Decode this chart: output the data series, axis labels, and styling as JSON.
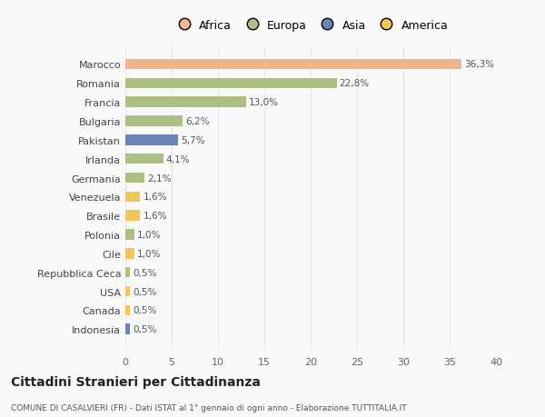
{
  "countries": [
    "Marocco",
    "Romania",
    "Francia",
    "Bulgaria",
    "Pakistan",
    "Irlanda",
    "Germania",
    "Venezuela",
    "Brasile",
    "Polonia",
    "Cile",
    "Repubblica Ceca",
    "USA",
    "Canada",
    "Indonesia"
  ],
  "values": [
    36.3,
    22.8,
    13.0,
    6.2,
    5.7,
    4.1,
    2.1,
    1.6,
    1.6,
    1.0,
    1.0,
    0.5,
    0.5,
    0.5,
    0.5
  ],
  "labels": [
    "36,3%",
    "22,8%",
    "13,0%",
    "6,2%",
    "5,7%",
    "4,1%",
    "2,1%",
    "1,6%",
    "1,6%",
    "1,0%",
    "1,0%",
    "0,5%",
    "0,5%",
    "0,5%",
    "0,5%"
  ],
  "bar_colors": [
    "#F2B48A",
    "#ADBF85",
    "#ADBF85",
    "#ADBF85",
    "#6B85B8",
    "#ADBF85",
    "#ADBF85",
    "#F0C85A",
    "#F0C85A",
    "#ADBF85",
    "#F0C85A",
    "#ADBF85",
    "#F0C85A",
    "#F0C85A",
    "#6B85B8"
  ],
  "xlim": [
    0,
    40
  ],
  "xticks": [
    0,
    5,
    10,
    15,
    20,
    25,
    30,
    35,
    40
  ],
  "title": "Cittadini Stranieri per Cittadinanza",
  "subtitle": "COMUNE DI CASALVIERI (FR) - Dati ISTAT al 1° gennaio di ogni anno - Elaborazione TUTTITALIA.IT",
  "background_color": "#f9f9f9",
  "grid_color": "#e8e8e8",
  "bar_height": 0.55,
  "legend_labels": [
    "Africa",
    "Europa",
    "Asia",
    "America"
  ],
  "legend_colors": [
    "#F2B48A",
    "#ADBF85",
    "#6B85B8",
    "#F0C85A"
  ]
}
